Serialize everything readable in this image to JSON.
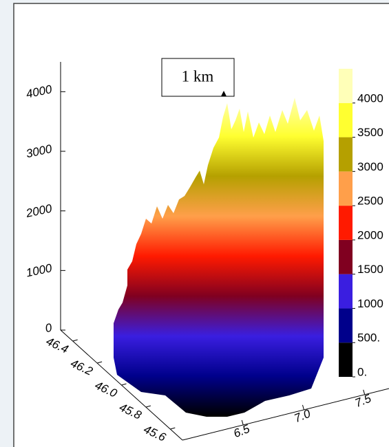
{
  "chart_data": {
    "type": "surface3d",
    "annotation": "1 km",
    "zlim": [
      0,
      4500
    ],
    "zticks": [
      0,
      1000,
      2000,
      3000,
      4000
    ],
    "yticks": [
      {
        "value": 46.4,
        "label": "46.4"
      },
      {
        "value": 46.2,
        "label": "46.2"
      },
      {
        "value": 46.0,
        "label": "46.0"
      },
      {
        "value": 45.8,
        "label": "45.8"
      },
      {
        "value": 45.6,
        "label": "45.6"
      }
    ],
    "ylim": [
      45.5,
      46.5
    ],
    "xticks": [
      {
        "value": 6.5,
        "label": "6.5"
      },
      {
        "value": 7.0,
        "label": "7.0"
      },
      {
        "value": 7.5,
        "label": "7.5"
      }
    ],
    "xlim": [
      6.0,
      7.7
    ],
    "colorbar": {
      "lim": [
        0,
        4500
      ],
      "ticks": [
        {
          "value": 0,
          "label": "0."
        },
        {
          "value": 500,
          "label": "500."
        },
        {
          "value": 1000,
          "label": "1000"
        },
        {
          "value": 1500,
          "label": "1500"
        },
        {
          "value": 2000,
          "label": "2000"
        },
        {
          "value": 2500,
          "label": "2500"
        },
        {
          "value": 3000,
          "label": "3000"
        },
        {
          "value": 3500,
          "label": "3500"
        },
        {
          "value": 4000,
          "label": "4000"
        }
      ],
      "colors": [
        "#000000",
        "#00008b",
        "#3a1ee0",
        "#800020",
        "#ff1a00",
        "#ff9f4a",
        "#b5a000",
        "#ffff30",
        "#ffffb8"
      ]
    }
  }
}
